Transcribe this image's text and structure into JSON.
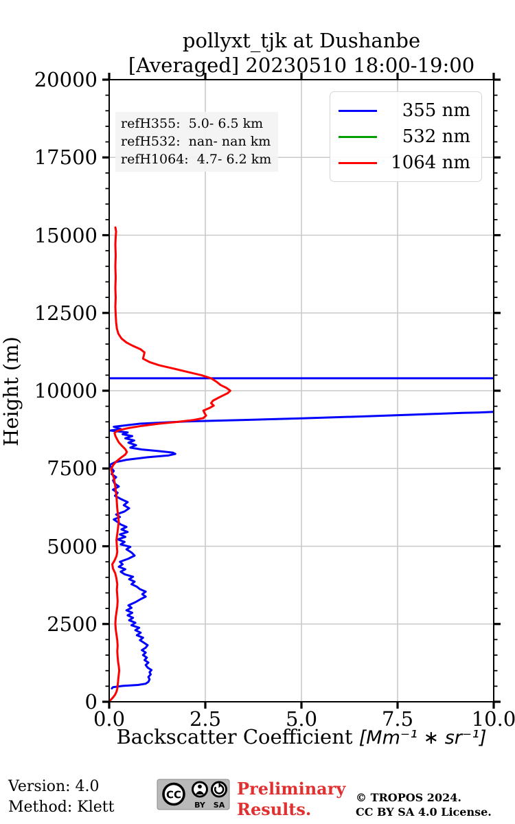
{
  "title": "pollyxt_tjk at Dushanbe",
  "subtitle": "[Averaged] 20230510 18:00-19:00",
  "annotation": {
    "lines": [
      "refH355:  5.0- 6.5 km",
      "refH532:  nan- nan km",
      "refH1064:  4.7- 6.2 km"
    ]
  },
  "footer": {
    "version": "Version: 4.0",
    "method": "Method: Klett",
    "preliminary_line1": "Preliminary",
    "preliminary_line2": "Results.",
    "preliminary_color": "#e03030",
    "copyright_line1": "© TROPOS 2024.",
    "copyright_line2": "CC BY SA 4.0 License.",
    "badge": {
      "cc": "CC",
      "by": "BY",
      "sa": "SA"
    }
  },
  "chart_data": {
    "type": "line",
    "orientation": "vertical-profile",
    "title": "pollyxt_tjk at Dushanbe",
    "subtitle": "[Averaged] 20230510 18:00-19:00",
    "xlabel_text": "Backscatter Coefficient ",
    "xlabel_math": "[Mm⁻¹ ∗ sr⁻¹]",
    "ylabel": "Height (m)",
    "xlim": [
      0,
      10
    ],
    "ylim": [
      0,
      20000
    ],
    "grid": true,
    "grid_color": "#c9c9c9",
    "axis_color": "#000000",
    "legend_position": "top-right",
    "x_ticks": {
      "values": [
        0,
        2.5,
        5,
        7.5,
        10
      ],
      "labels": [
        "0.0",
        "2.5",
        "5.0",
        "7.5",
        "10.0"
      ]
    },
    "y_ticks": {
      "values": [
        0,
        2500,
        5000,
        7500,
        10000,
        12500,
        15000,
        17500,
        20000
      ],
      "labels": [
        "0",
        "2500",
        "5000",
        "7500",
        "10000",
        "12500",
        "15000",
        "17500",
        "20000"
      ],
      "minor_step": 500
    },
    "series": [
      {
        "name": "355 nm",
        "color": "#0000ff",
        "segments": [
          [
            [
              0.07,
              430
            ],
            [
              0.1,
              470
            ],
            [
              0.35,
              510
            ],
            [
              0.75,
              540
            ],
            [
              0.95,
              580
            ],
            [
              1.02,
              640
            ],
            [
              1.05,
              720
            ],
            [
              1.02,
              800
            ],
            [
              1.08,
              880
            ],
            [
              1.05,
              950
            ],
            [
              1.1,
              1020
            ],
            [
              1.0,
              1100
            ],
            [
              0.95,
              1180
            ],
            [
              1.02,
              1260
            ],
            [
              0.92,
              1340
            ],
            [
              0.98,
              1420
            ],
            [
              0.88,
              1500
            ],
            [
              0.95,
              1580
            ],
            [
              0.85,
              1660
            ],
            [
              0.95,
              1740
            ],
            [
              1.0,
              1820
            ],
            [
              0.9,
              1900
            ],
            [
              0.8,
              1980
            ],
            [
              0.88,
              2060
            ],
            [
              0.72,
              2140
            ],
            [
              0.82,
              2220
            ],
            [
              0.68,
              2300
            ],
            [
              0.78,
              2380
            ],
            [
              0.58,
              2460
            ],
            [
              0.68,
              2540
            ],
            [
              0.52,
              2620
            ],
            [
              0.62,
              2700
            ],
            [
              0.48,
              2780
            ],
            [
              0.6,
              2860
            ],
            [
              0.45,
              2940
            ],
            [
              0.58,
              3020
            ],
            [
              0.5,
              3100
            ],
            [
              0.68,
              3200
            ],
            [
              0.82,
              3300
            ],
            [
              0.95,
              3380
            ],
            [
              0.86,
              3460
            ],
            [
              0.95,
              3540
            ],
            [
              0.8,
              3620
            ],
            [
              0.72,
              3700
            ],
            [
              0.58,
              3780
            ],
            [
              0.66,
              3860
            ],
            [
              0.52,
              3940
            ],
            [
              0.62,
              4020
            ],
            [
              0.4,
              4100
            ],
            [
              0.3,
              4180
            ],
            [
              0.42,
              4260
            ],
            [
              0.25,
              4340
            ],
            [
              0.35,
              4420
            ],
            [
              0.28,
              4500
            ],
            [
              0.5,
              4600
            ],
            [
              0.66,
              4700
            ],
            [
              0.58,
              4800
            ],
            [
              0.45,
              4900
            ],
            [
              0.55,
              4980
            ],
            [
              0.3,
              5060
            ],
            [
              0.4,
              5140
            ],
            [
              0.22,
              5220
            ],
            [
              0.42,
              5300
            ],
            [
              0.28,
              5380
            ],
            [
              0.48,
              5460
            ],
            [
              0.32,
              5540
            ],
            [
              0.45,
              5620
            ],
            [
              0.3,
              5700
            ],
            [
              0.22,
              5780
            ],
            [
              0.12,
              5860
            ],
            [
              0.28,
              5940
            ],
            [
              0.18,
              6020
            ],
            [
              0.4,
              6120
            ],
            [
              0.52,
              6220
            ],
            [
              0.38,
              6320
            ],
            [
              0.48,
              6420
            ],
            [
              0.3,
              6520
            ],
            [
              0.15,
              6620
            ],
            [
              0.22,
              6720
            ],
            [
              0.1,
              6820
            ],
            [
              0.25,
              6920
            ],
            [
              0.14,
              7020
            ],
            [
              0.1,
              7120
            ],
            [
              0.18,
              7220
            ],
            [
              0.06,
              7320
            ],
            [
              0.12,
              7420
            ],
            [
              0.05,
              7520
            ],
            [
              0.02,
              7620
            ],
            [
              0.15,
              7700
            ],
            [
              0.45,
              7780
            ],
            [
              1.0,
              7860
            ],
            [
              1.55,
              7920
            ],
            [
              1.72,
              7970
            ],
            [
              1.65,
              8010
            ],
            [
              1.28,
              8060
            ],
            [
              0.85,
              8110
            ],
            [
              0.55,
              8170
            ],
            [
              0.7,
              8250
            ],
            [
              0.5,
              8330
            ],
            [
              0.65,
              8400
            ],
            [
              0.42,
              8470
            ],
            [
              0.6,
              8540
            ],
            [
              0.35,
              8600
            ],
            [
              0.48,
              8660
            ],
            [
              0.03,
              8720
            ],
            [
              0.3,
              8770
            ],
            [
              0.12,
              8840
            ],
            [
              0.8,
              8940
            ],
            [
              2.0,
              9010
            ],
            [
              3.5,
              9060
            ],
            [
              5.0,
              9110
            ],
            [
              6.5,
              9170
            ],
            [
              7.9,
              9230
            ],
            [
              8.6,
              9260
            ],
            [
              9.2,
              9290
            ],
            [
              9.6,
              9300
            ],
            [
              10.15,
              9330
            ]
          ],
          [
            [
              -0.05,
              10400
            ],
            [
              10.15,
              10400
            ]
          ]
        ]
      },
      {
        "name": "532 nm",
        "color": "#00a000",
        "segments": []
      },
      {
        "name": "1064 nm",
        "color": "#ff0000",
        "segments": [
          [
            [
              0.0,
              0
            ],
            [
              0.04,
              60
            ],
            [
              0.1,
              140
            ],
            [
              0.15,
              220
            ],
            [
              0.19,
              320
            ],
            [
              0.21,
              420
            ],
            [
              0.22,
              520
            ],
            [
              0.23,
              640
            ],
            [
              0.24,
              760
            ],
            [
              0.25,
              880
            ],
            [
              0.26,
              1000
            ],
            [
              0.25,
              1140
            ],
            [
              0.23,
              1300
            ],
            [
              0.22,
              1460
            ],
            [
              0.21,
              1620
            ],
            [
              0.22,
              1800
            ],
            [
              0.21,
              1980
            ],
            [
              0.19,
              2160
            ],
            [
              0.17,
              2340
            ],
            [
              0.16,
              2520
            ],
            [
              0.17,
              2700
            ],
            [
              0.19,
              2880
            ],
            [
              0.21,
              3060
            ],
            [
              0.22,
              3240
            ],
            [
              0.21,
              3420
            ],
            [
              0.2,
              3600
            ],
            [
              0.21,
              3780
            ],
            [
              0.19,
              3960
            ],
            [
              0.16,
              4120
            ],
            [
              0.1,
              4280
            ],
            [
              0.08,
              4420
            ],
            [
              0.14,
              4540
            ],
            [
              0.19,
              4680
            ],
            [
              0.21,
              4820
            ],
            [
              0.2,
              5000
            ],
            [
              0.19,
              5200
            ],
            [
              0.21,
              5400
            ],
            [
              0.23,
              5600
            ],
            [
              0.25,
              5800
            ],
            [
              0.23,
              6000
            ],
            [
              0.21,
              6200
            ],
            [
              0.2,
              6400
            ],
            [
              0.19,
              6600
            ],
            [
              0.17,
              6800
            ],
            [
              0.15,
              7000
            ],
            [
              0.12,
              7200
            ],
            [
              0.07,
              7380
            ],
            [
              0.05,
              7480
            ],
            [
              0.1,
              7600
            ],
            [
              0.18,
              7720
            ],
            [
              0.3,
              7840
            ],
            [
              0.42,
              7950
            ],
            [
              0.46,
              8030
            ],
            [
              0.42,
              8120
            ],
            [
              0.33,
              8230
            ],
            [
              0.25,
              8340
            ],
            [
              0.2,
              8450
            ],
            [
              0.16,
              8550
            ],
            [
              0.14,
              8640
            ],
            [
              0.2,
              8700
            ],
            [
              0.29,
              8740
            ],
            [
              0.5,
              8800
            ],
            [
              0.85,
              8870
            ],
            [
              1.3,
              8940
            ],
            [
              1.8,
              9000
            ],
            [
              2.2,
              9060
            ],
            [
              2.45,
              9120
            ],
            [
              2.52,
              9200
            ],
            [
              2.48,
              9280
            ],
            [
              2.45,
              9360
            ],
            [
              2.6,
              9440
            ],
            [
              2.72,
              9520
            ],
            [
              2.65,
              9600
            ],
            [
              2.7,
              9680
            ],
            [
              2.82,
              9760
            ],
            [
              2.95,
              9840
            ],
            [
              3.08,
              9920
            ],
            [
              3.15,
              10000
            ],
            [
              3.05,
              10090
            ],
            [
              2.9,
              10180
            ],
            [
              2.8,
              10280
            ],
            [
              2.65,
              10400
            ],
            [
              2.4,
              10500
            ],
            [
              2.05,
              10600
            ],
            [
              1.65,
              10720
            ],
            [
              1.3,
              10820
            ],
            [
              1.05,
              10920
            ],
            [
              0.88,
              11030
            ],
            [
              0.9,
              11130
            ],
            [
              0.92,
              11230
            ],
            [
              0.82,
              11330
            ],
            [
              0.62,
              11440
            ],
            [
              0.45,
              11550
            ],
            [
              0.32,
              11680
            ],
            [
              0.24,
              11830
            ],
            [
              0.2,
              12000
            ],
            [
              0.18,
              12200
            ],
            [
              0.17,
              12450
            ],
            [
              0.16,
              12700
            ],
            [
              0.17,
              13000
            ],
            [
              0.16,
              13300
            ],
            [
              0.17,
              13650
            ],
            [
              0.16,
              14000
            ],
            [
              0.17,
              14350
            ],
            [
              0.16,
              14700
            ],
            [
              0.17,
              14950
            ],
            [
              0.18,
              15120
            ],
            [
              0.16,
              15250
            ]
          ]
        ]
      }
    ]
  }
}
